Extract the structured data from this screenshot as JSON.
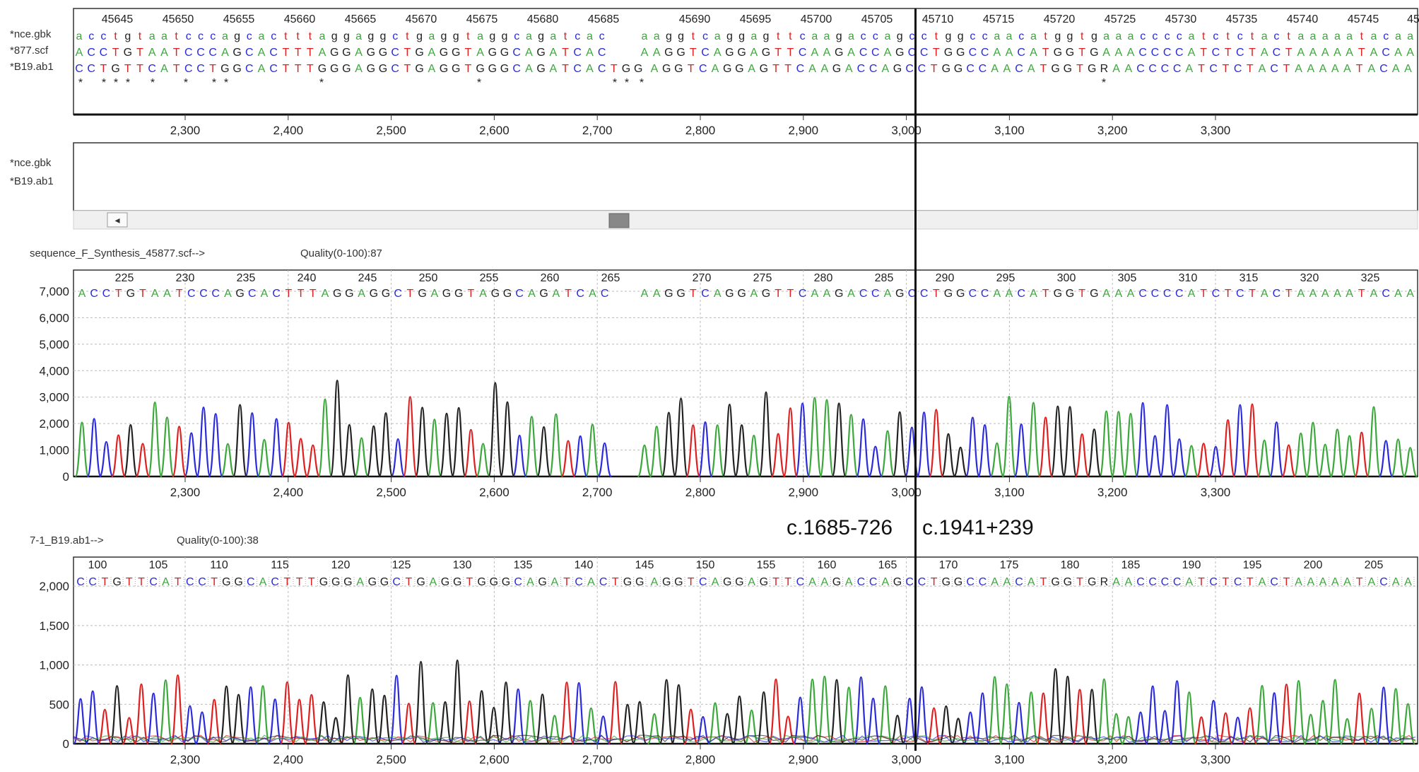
{
  "colors": {
    "A": "#3aa83a",
    "C": "#2b2bdc",
    "G": "#222222",
    "T": "#e02020",
    "R": "#222222"
  },
  "alignment": {
    "ref_numbers": [
      "45645",
      "45650",
      "45655",
      "45660",
      "45665",
      "45670",
      "45675",
      "45680",
      "45685",
      "45690",
      "45695",
      "45700",
      "45705",
      "45710",
      "45715",
      "45720",
      "45725",
      "45730",
      "45735",
      "45740",
      "45745",
      "45"
    ],
    "rows": [
      {
        "label": "*nce.gbk",
        "seq_left": "acctgtaatcccagcactttaggaggctgaggtaggcagatcac",
        "seq_right": "aaggtcaggagttcaagaccagcctggccaacatggtgaaaccccatctctactaaaaatacaa"
      },
      {
        "label": "*877.scf",
        "seq_left": "ACCTGTAATCCCAGCACTTTAGGAGGCTGAGGTAGGCAGATCAC",
        "seq_right": "AAGGTCAGGAGTTCAAGACCAGCCTGGCCAACATGGTGAAACCCCATCTCTACTAAAAATACAA"
      },
      {
        "label": "*B19.ab1",
        "seq_left": "CCTGTTCATCCTGGCACTTTGGGAGGCTGAGGTGGGCAGATCACTGG",
        "seq_right": "AGGTCAGGAGTTCAAGACCAGCCTGGCCAACATGGTGRAACCCCATCTCTACTAAAAATACAA"
      }
    ],
    "diff_marks": "*  * * *   *    *  **              *                        *                          * * *                                                                    *",
    "axis_ticks": [
      "2,300",
      "2,400",
      "2,500",
      "2,600",
      "2,700",
      "2,800",
      "2,900",
      "3,000",
      "3,100",
      "3,200",
      "3,300"
    ]
  },
  "overview": {
    "labels": [
      "*nce.gbk",
      "*B19.ab1"
    ]
  },
  "trace1": {
    "title": "sequence_F_Synthesis_45877.scf-->",
    "quality": "Quality(0-100):87",
    "base_numbers": [
      "225",
      "230",
      "235",
      "240",
      "245",
      "250",
      "255",
      "260",
      "265",
      "270",
      "275",
      "280",
      "285",
      "290",
      "295",
      "300",
      "305",
      "310",
      "315",
      "320",
      "325"
    ],
    "seq_left": "ACCTGTAATCCCAGCACTTTAGGAGGCTGAGGTAGGCAGATCAC",
    "seq_right": "AAGGTCAGGAGTTCAAGACCAGCCTGGCCAACATGGTGAAACCCCATCTCTACTAAAAATACAA",
    "y_ticks": [
      "7,000",
      "6,000",
      "5,000",
      "4,000",
      "3,000",
      "2,000",
      "1,000",
      "0"
    ],
    "axis_ticks": [
      "2,300",
      "2,400",
      "2,500",
      "2,600",
      "2,700",
      "2,800",
      "2,900",
      "3,000",
      "3,100",
      "3,200",
      "3,300"
    ]
  },
  "annotation": {
    "left": "c.1685-726",
    "right": "c.1941+239"
  },
  "trace2": {
    "title": "7-1_B19.ab1-->",
    "quality": "Quality(0-100):38",
    "base_numbers": [
      "100",
      "105",
      "110",
      "115",
      "120",
      "125",
      "130",
      "135",
      "140",
      "145",
      "150",
      "155",
      "160",
      "165",
      "170",
      "175",
      "180",
      "185",
      "190",
      "195",
      "200",
      "205"
    ],
    "seq_left": "CCTGTTCATCCTGGCACTTTGGGAGGCTGAGGTGGGCAGATCACTGG",
    "seq_right": "AGGTCAGGAGTTCAAGACCAGCCTGGCCAACATGGTGRAACCCCATCTCTACTAAAAATACAA",
    "y_ticks": [
      "2,000",
      "1,500",
      "1,000",
      "500",
      "0"
    ],
    "axis_ticks": [
      "2,300",
      "2,400",
      "2,500",
      "2,600",
      "2,700",
      "2,800",
      "2,900",
      "3,000",
      "3,100",
      "3,200",
      "3,300"
    ]
  }
}
